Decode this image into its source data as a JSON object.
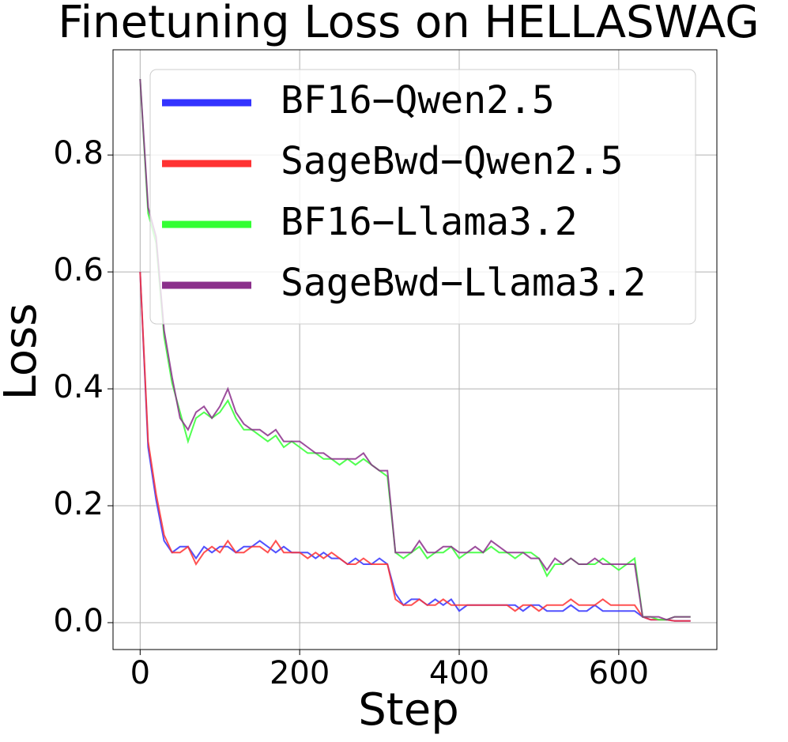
{
  "chart_data": {
    "type": "line",
    "title": "Finetuning Loss on HELLASWAG",
    "xlabel": "Step",
    "ylabel": "Loss",
    "x": [
      0,
      10,
      20,
      30,
      40,
      50,
      60,
      70,
      80,
      90,
      100,
      110,
      120,
      130,
      140,
      150,
      160,
      170,
      180,
      190,
      200,
      210,
      220,
      230,
      240,
      250,
      260,
      270,
      280,
      290,
      300,
      310,
      320,
      330,
      340,
      350,
      360,
      370,
      380,
      390,
      400,
      410,
      420,
      430,
      440,
      450,
      460,
      470,
      480,
      490,
      500,
      510,
      520,
      530,
      540,
      550,
      560,
      570,
      580,
      590,
      600,
      610,
      620,
      630,
      640,
      650,
      660,
      670,
      680,
      690
    ],
    "series": [
      {
        "name": "BF16−Qwen2.5",
        "color": "#3333ff",
        "values": [
          0.6,
          0.3,
          0.21,
          0.14,
          0.12,
          0.13,
          0.13,
          0.11,
          0.13,
          0.12,
          0.13,
          0.13,
          0.12,
          0.13,
          0.13,
          0.14,
          0.13,
          0.12,
          0.13,
          0.12,
          0.12,
          0.12,
          0.11,
          0.12,
          0.11,
          0.11,
          0.1,
          0.11,
          0.1,
          0.1,
          0.11,
          0.1,
          0.05,
          0.03,
          0.04,
          0.04,
          0.03,
          0.04,
          0.03,
          0.04,
          0.02,
          0.03,
          0.03,
          0.03,
          0.03,
          0.03,
          0.03,
          0.03,
          0.02,
          0.03,
          0.03,
          0.02,
          0.02,
          0.02,
          0.03,
          0.02,
          0.02,
          0.03,
          0.02,
          0.02,
          0.02,
          0.02,
          0.02,
          0.01,
          0.005,
          0.005,
          0.005,
          0.003,
          0.003,
          0.003
        ]
      },
      {
        "name": "SageBwd−Qwen2.5",
        "color": "#ff3333",
        "values": [
          0.6,
          0.31,
          0.22,
          0.15,
          0.12,
          0.12,
          0.13,
          0.1,
          0.12,
          0.13,
          0.12,
          0.14,
          0.12,
          0.12,
          0.13,
          0.13,
          0.12,
          0.14,
          0.12,
          0.12,
          0.12,
          0.11,
          0.12,
          0.11,
          0.12,
          0.11,
          0.1,
          0.1,
          0.11,
          0.1,
          0.1,
          0.1,
          0.04,
          0.03,
          0.03,
          0.04,
          0.03,
          0.03,
          0.04,
          0.03,
          0.03,
          0.03,
          0.03,
          0.03,
          0.03,
          0.03,
          0.03,
          0.02,
          0.03,
          0.03,
          0.02,
          0.03,
          0.03,
          0.03,
          0.04,
          0.03,
          0.03,
          0.03,
          0.04,
          0.03,
          0.03,
          0.03,
          0.03,
          0.01,
          0.005,
          0.005,
          0.005,
          0.003,
          0.003,
          0.003
        ]
      },
      {
        "name": "BF16−Llama3.2",
        "color": "#33ff33",
        "values": [
          0.93,
          0.7,
          0.65,
          0.49,
          0.41,
          0.36,
          0.31,
          0.35,
          0.36,
          0.35,
          0.36,
          0.38,
          0.35,
          0.33,
          0.33,
          0.32,
          0.31,
          0.32,
          0.3,
          0.31,
          0.3,
          0.29,
          0.29,
          0.28,
          0.28,
          0.27,
          0.28,
          0.27,
          0.28,
          0.27,
          0.26,
          0.25,
          0.12,
          0.11,
          0.12,
          0.13,
          0.11,
          0.12,
          0.12,
          0.13,
          0.11,
          0.12,
          0.12,
          0.12,
          0.13,
          0.12,
          0.12,
          0.11,
          0.12,
          0.12,
          0.11,
          0.08,
          0.1,
          0.1,
          0.11,
          0.1,
          0.1,
          0.1,
          0.11,
          0.1,
          0.09,
          0.1,
          0.11,
          0.01,
          0.01,
          0.005,
          0.005,
          0.01,
          0.01,
          0.01
        ]
      },
      {
        "name": "SageBwd−Llama3.2",
        "color": "#8b2f8b",
        "values": [
          0.93,
          0.71,
          0.66,
          0.5,
          0.42,
          0.35,
          0.33,
          0.36,
          0.37,
          0.35,
          0.37,
          0.4,
          0.36,
          0.34,
          0.33,
          0.33,
          0.32,
          0.33,
          0.31,
          0.31,
          0.31,
          0.3,
          0.29,
          0.29,
          0.28,
          0.28,
          0.28,
          0.28,
          0.29,
          0.27,
          0.26,
          0.26,
          0.12,
          0.12,
          0.12,
          0.14,
          0.12,
          0.12,
          0.13,
          0.13,
          0.12,
          0.12,
          0.13,
          0.12,
          0.14,
          0.13,
          0.12,
          0.12,
          0.12,
          0.11,
          0.11,
          0.09,
          0.11,
          0.1,
          0.11,
          0.1,
          0.1,
          0.11,
          0.1,
          0.1,
          0.1,
          0.1,
          0.1,
          0.01,
          0.01,
          0.01,
          0.005,
          0.01,
          0.01,
          0.01
        ]
      }
    ],
    "xlim": [
      -34,
      723
    ],
    "ylim": [
      -0.046,
      0.98
    ],
    "xticks": [
      0,
      200,
      400,
      600
    ],
    "yticks": [
      {
        "value": 0,
        "label": "0.0"
      },
      0.2,
      0.4,
      0.6,
      0.8
    ],
    "grid": true,
    "legend": "upper right"
  }
}
